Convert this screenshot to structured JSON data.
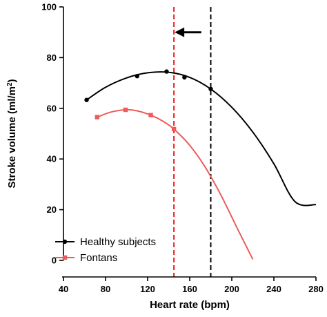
{
  "chart_data": {
    "type": "line",
    "xlabel": "Heart rate (bpm)",
    "ylabel_main": "Stroke volume (ml/m",
    "ylabel_sup": "2",
    "ylabel_close": ")",
    "xlim": [
      40,
      280
    ],
    "ylim": [
      0,
      100
    ],
    "x_ticks": [
      40,
      80,
      120,
      160,
      200,
      240,
      280
    ],
    "y_ticks": [
      0,
      20,
      40,
      60,
      80,
      100
    ],
    "grid": false,
    "legend_position": "bottom-left",
    "series": [
      {
        "name": "Healthy subjects",
        "color": "#000000",
        "marker": "circle",
        "points": [
          {
            "x": 62,
            "y": 63.3
          },
          {
            "x": 110,
            "y": 72.7
          },
          {
            "x": 138,
            "y": 74.5
          },
          {
            "x": 155,
            "y": 72.2
          },
          {
            "x": 180,
            "y": 67.6
          }
        ],
        "fit_curve": [
          {
            "x": 62,
            "y": 63.3
          },
          {
            "x": 80,
            "y": 68.3
          },
          {
            "x": 100,
            "y": 72.0
          },
          {
            "x": 120,
            "y": 74.0
          },
          {
            "x": 140,
            "y": 74.2
          },
          {
            "x": 160,
            "y": 72.2
          },
          {
            "x": 180,
            "y": 67.6
          },
          {
            "x": 200,
            "y": 60.4
          },
          {
            "x": 220,
            "y": 50.6
          },
          {
            "x": 240,
            "y": 38.1
          },
          {
            "x": 260,
            "y": 23.2
          },
          {
            "x": 280,
            "y": 22.0
          }
        ]
      },
      {
        "name": "Fontans",
        "color": "#ef5a5a",
        "marker": "square",
        "points": [
          {
            "x": 72,
            "y": 56.5
          },
          {
            "x": 99,
            "y": 59.4
          },
          {
            "x": 123,
            "y": 57.3
          },
          {
            "x": 145,
            "y": 51.8
          }
        ],
        "fit_curve": [
          {
            "x": 72,
            "y": 56.5
          },
          {
            "x": 85,
            "y": 58.5
          },
          {
            "x": 99,
            "y": 59.4
          },
          {
            "x": 110,
            "y": 59.0
          },
          {
            "x": 123,
            "y": 57.3
          },
          {
            "x": 135,
            "y": 54.8
          },
          {
            "x": 145,
            "y": 51.8
          },
          {
            "x": 160,
            "y": 45.4
          },
          {
            "x": 175,
            "y": 36.6
          },
          {
            "x": 190,
            "y": 25.5
          },
          {
            "x": 205,
            "y": 12.8
          },
          {
            "x": 220,
            "y": 0.4
          }
        ]
      }
    ],
    "vertical_lines": [
      {
        "x": 145,
        "color": "#ee1c1c",
        "style": "dashed"
      },
      {
        "x": 180,
        "color": "#000000",
        "style": "dashed"
      }
    ],
    "annotation": {
      "type": "arrow",
      "direction": "left",
      "from": {
        "x": 171,
        "y": 90
      },
      "to": {
        "x": 145,
        "y": 90
      },
      "color": "#000000"
    }
  }
}
